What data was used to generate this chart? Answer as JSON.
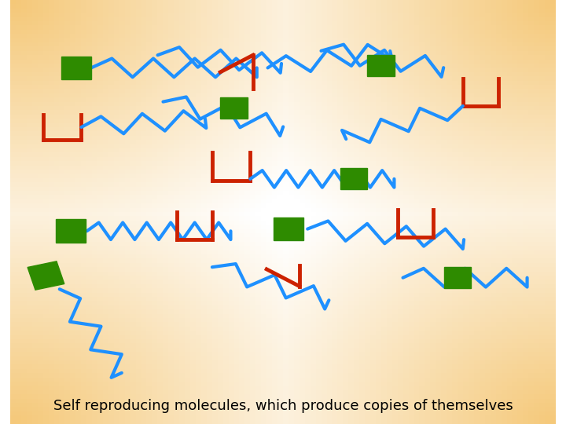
{
  "background_gradient": {
    "top_left": "#F5C878",
    "center": "#FFFFFF",
    "bottom_right": "#F5C878"
  },
  "title_text": "Self reproducing molecules, which produce copies of themselves",
  "title_fontsize": 13,
  "colors": {
    "blue": "#1E90FF",
    "red": "#CC2200",
    "green": "#2E8B00"
  },
  "lw_blue": 3.0,
  "lw_red": 3.5,
  "square_size": 0.045,
  "figsize": [
    7.2,
    5.4
  ],
  "dpi": 100
}
